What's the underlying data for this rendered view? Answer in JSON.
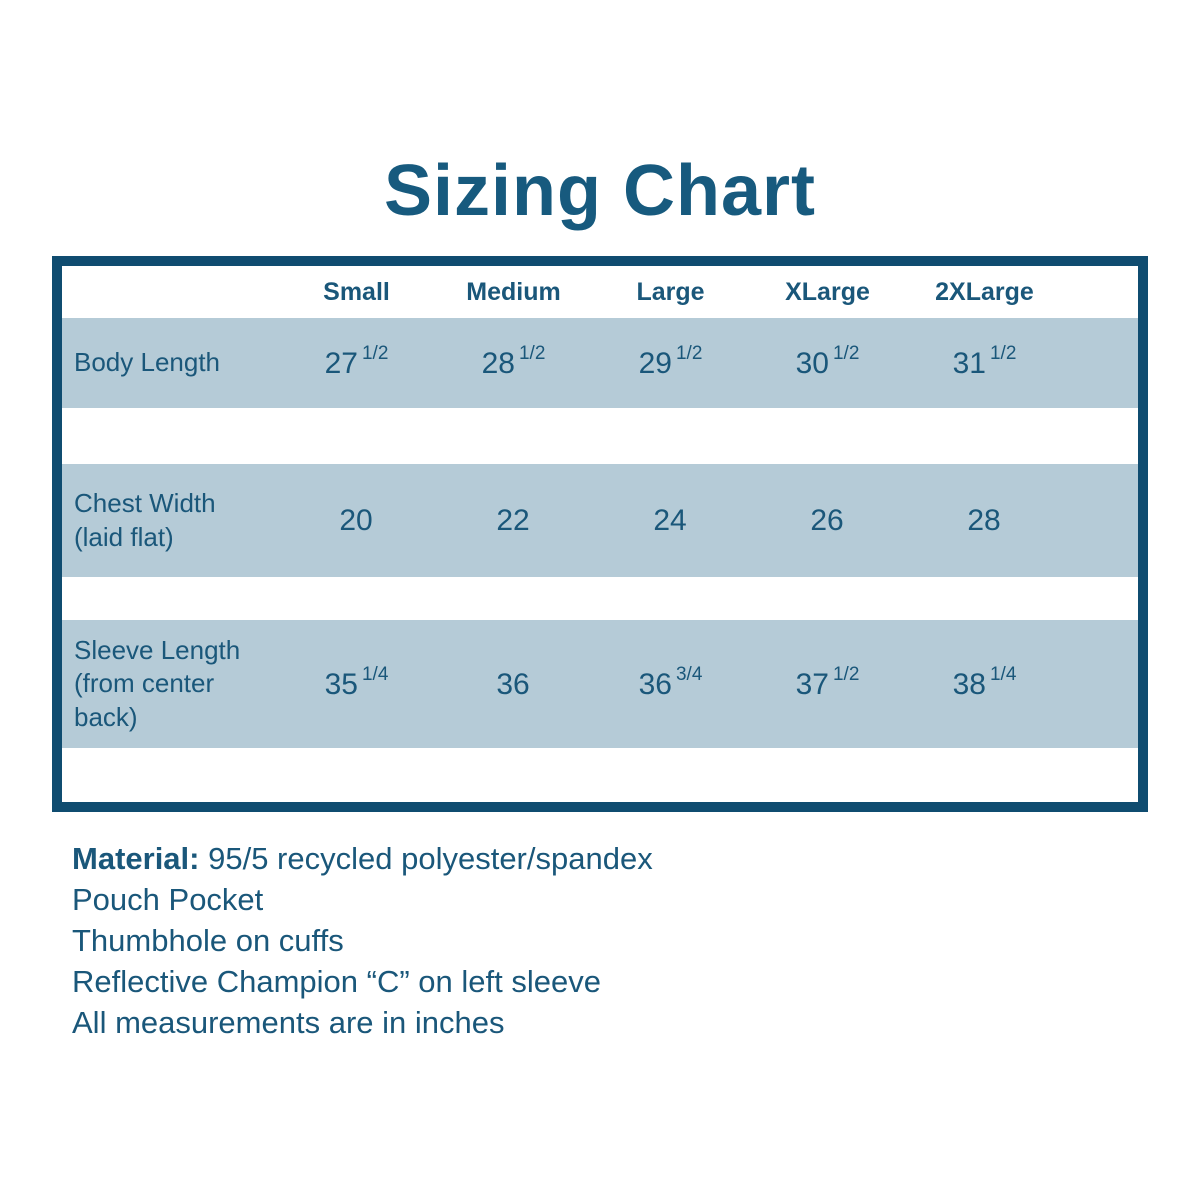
{
  "colors": {
    "ink": "#1a577a",
    "title": "#175a7e",
    "border": "#0f4c70",
    "band": "#b5cbd7",
    "bg": "#ffffff"
  },
  "title": "Sizing Chart",
  "table": {
    "columns": [
      "Small",
      "Medium",
      "Large",
      "XLarge",
      "2XLarge"
    ],
    "rows": [
      {
        "label": "Body Length",
        "values": [
          {
            "n": "27",
            "f": "1/2"
          },
          {
            "n": "28",
            "f": "1/2"
          },
          {
            "n": "29",
            "f": "1/2"
          },
          {
            "n": "30",
            "f": "1/2"
          },
          {
            "n": "31",
            "f": "1/2"
          }
        ]
      },
      {
        "label": "Chest Width (laid flat)",
        "values": [
          {
            "n": "20",
            "f": ""
          },
          {
            "n": "22",
            "f": ""
          },
          {
            "n": "24",
            "f": ""
          },
          {
            "n": "26",
            "f": ""
          },
          {
            "n": "28",
            "f": ""
          }
        ]
      },
      {
        "label": "Sleeve Length (from center back)",
        "values": [
          {
            "n": "35",
            "f": "1/4"
          },
          {
            "n": "36",
            "f": ""
          },
          {
            "n": "36",
            "f": "3/4"
          },
          {
            "n": "37",
            "f": "1/2"
          },
          {
            "n": "38",
            "f": "1/4"
          }
        ]
      }
    ]
  },
  "notes": [
    {
      "bold": "Material:",
      "text": " 95/5 recycled polyester/spandex"
    },
    {
      "bold": "",
      "text": "Pouch Pocket"
    },
    {
      "bold": "",
      "text": "Thumbhole on cuffs"
    },
    {
      "bold": "",
      "text": "Reflective Champion “C” on left sleeve"
    },
    {
      "bold": "",
      "text": "All measurements are in inches"
    }
  ],
  "chart_data": {
    "type": "table",
    "title": "Sizing Chart",
    "columns": [
      "",
      "Small",
      "Medium",
      "Large",
      "XLarge",
      "2XLarge"
    ],
    "rows": [
      [
        "Body Length",
        "27 1/2",
        "28 1/2",
        "29 1/2",
        "30 1/2",
        "31 1/2"
      ],
      [
        "Chest Width (laid flat)",
        "20",
        "22",
        "24",
        "26",
        "28"
      ],
      [
        "Sleeve Length (from center back)",
        "35 1/4",
        "36",
        "36 3/4",
        "37 1/2",
        "38 1/4"
      ]
    ],
    "units": "inches",
    "notes": [
      "Material: 95/5 recycled polyester/spandex",
      "Pouch Pocket",
      "Thumbhole on cuffs",
      "Reflective Champion “C” on left sleeve",
      "All measurements are in inches"
    ]
  }
}
